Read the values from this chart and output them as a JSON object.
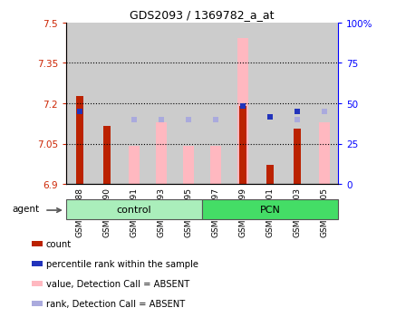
{
  "title": "GDS2093 / 1369782_a_at",
  "samples": [
    "GSM111888",
    "GSM111890",
    "GSM111891",
    "GSM111893",
    "GSM111895",
    "GSM111897",
    "GSM111899",
    "GSM111901",
    "GSM111903",
    "GSM111905"
  ],
  "groups": [
    "control",
    "control",
    "control",
    "control",
    "control",
    "PCN",
    "PCN",
    "PCN",
    "PCN",
    "PCN"
  ],
  "ylim_left": [
    6.9,
    7.5
  ],
  "ylim_right": [
    0,
    100
  ],
  "yticks_left": [
    6.9,
    7.05,
    7.2,
    7.35,
    7.5
  ],
  "ytick_labels_left": [
    "6.9",
    "7.05",
    "7.2",
    "7.35",
    "7.5"
  ],
  "yticks_right": [
    0,
    25,
    50,
    75,
    100
  ],
  "ytick_labels_right": [
    "0",
    "25",
    "50",
    "75",
    "100%"
  ],
  "hlines": [
    7.05,
    7.2,
    7.35
  ],
  "red_bar_values": [
    7.225,
    7.115,
    null,
    null,
    null,
    null,
    7.19,
    6.97,
    7.105,
    null
  ],
  "blue_square_values": [
    7.17,
    null,
    null,
    null,
    null,
    null,
    7.19,
    7.15,
    7.17,
    null
  ],
  "pink_bar_values": [
    null,
    null,
    7.04,
    7.13,
    7.04,
    7.04,
    7.44,
    null,
    null,
    7.13
  ],
  "lavender_square_values": [
    null,
    null,
    7.14,
    7.14,
    7.14,
    7.14,
    7.19,
    null,
    7.14,
    7.17
  ],
  "red_bar_color": "#bb2200",
  "blue_square_color": "#2233bb",
  "pink_bar_color": "#ffb8c0",
  "lavender_square_color": "#aaaadd",
  "control_group_color": "#aaeebb",
  "pcn_group_color": "#44dd66",
  "bg_color": "#cccccc",
  "plot_bg": "#ffffff",
  "agent_label": "agent",
  "legend": [
    {
      "color": "#bb2200",
      "label": "count",
      "marker": "square"
    },
    {
      "color": "#2233bb",
      "label": "percentile rank within the sample",
      "marker": "square"
    },
    {
      "color": "#ffb8c0",
      "label": "value, Detection Call = ABSENT",
      "marker": "square"
    },
    {
      "color": "#aaaadd",
      "label": "rank, Detection Call = ABSENT",
      "marker": "square"
    }
  ]
}
